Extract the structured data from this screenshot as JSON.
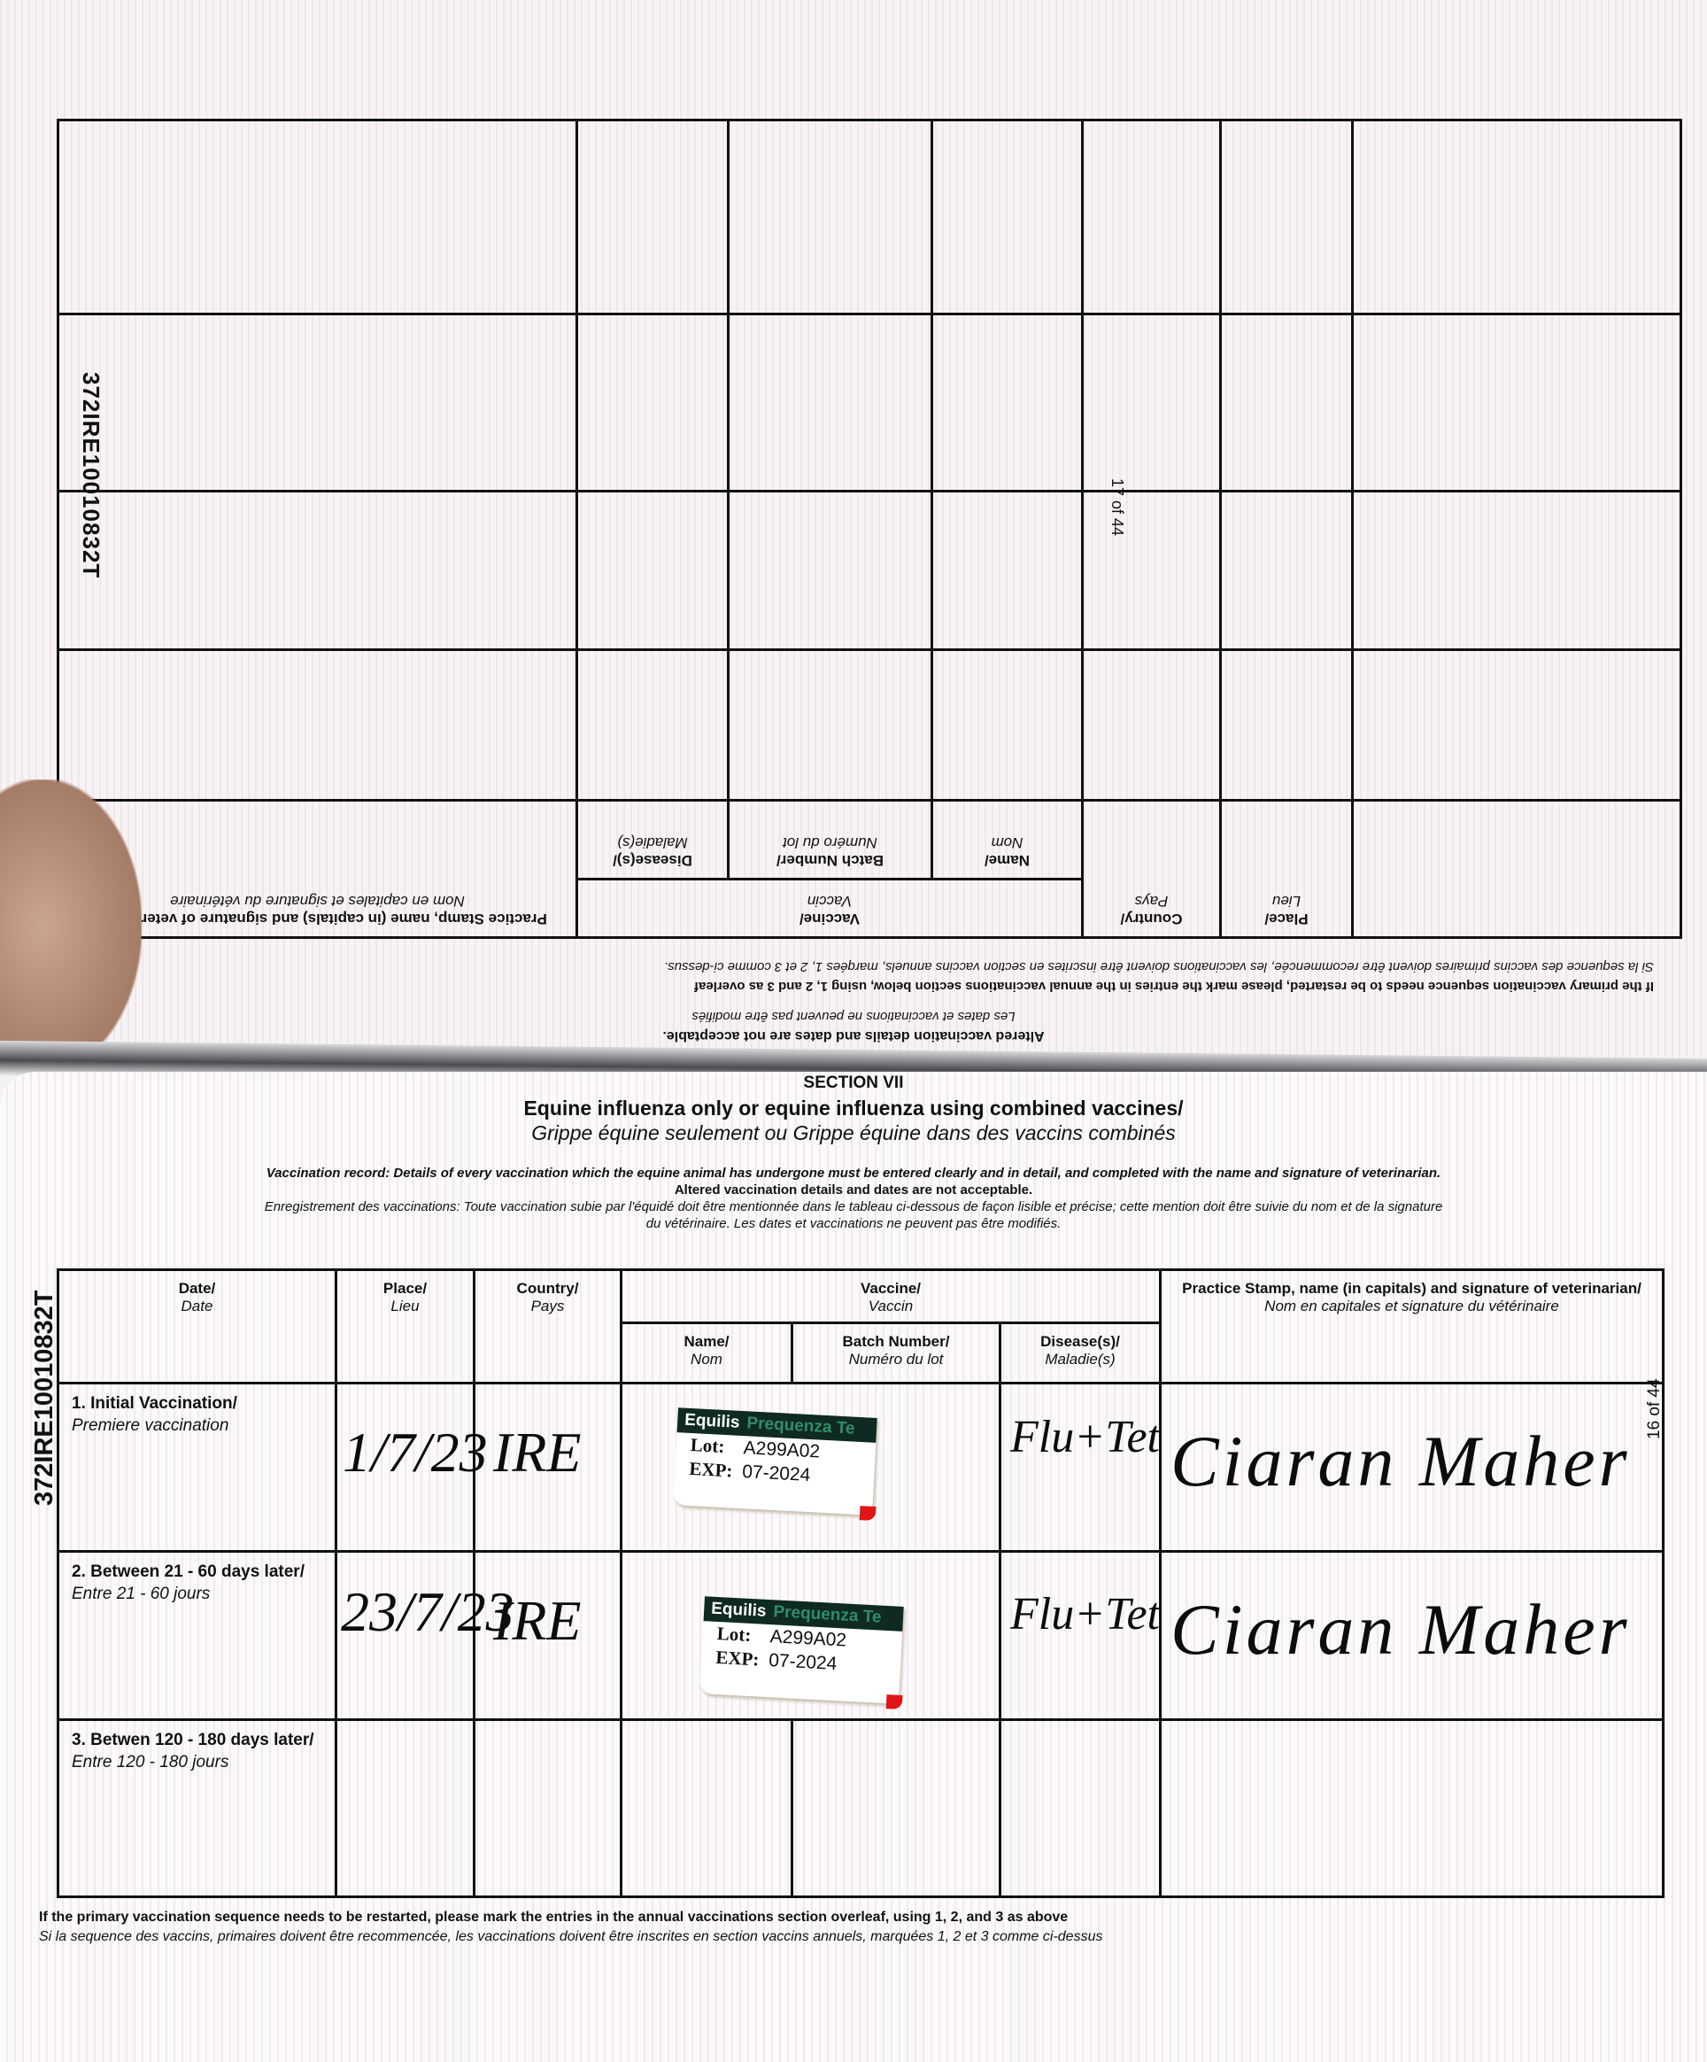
{
  "top_page": {
    "horse_id": "372IRE10010832T",
    "page_number": "17 of 44",
    "note_altered_en": "Altered vaccination details and dates are not acceptable.",
    "note_altered_fr": "Les dates et vaccinations ne peuvent pas être modifiés",
    "note_restart_en": "If the primary vaccination sequence needs to be restarted, please mark the entries in the annual vaccinations section below, using 1, 2 and 3 as overleaf",
    "note_restart_fr": "Si la sequence des vaccins primaires doivent être recommencée, les vaccinations doivent être inscrites en section vaccins annuels, marqées 1, 2 et 3 comme ci-dessus.",
    "headers": {
      "place_en": "Place/",
      "place_fr": "Lieu",
      "country_en": "Country/",
      "country_fr": "Pays",
      "vaccine_en": "Vaccine/",
      "vaccine_fr": "Vaccin",
      "name_en": "Name/",
      "name_fr": "Nom",
      "batch_en": "Batch Number/",
      "batch_fr": "Numéro du lot",
      "disease_en": "Disease(s)/",
      "disease_fr": "Maladie(s)",
      "stamp_en": "Practice Stamp, name (in capitals) and signature of veterinarian/",
      "stamp_fr": "Nom en capitales et signature du vétérinaire"
    }
  },
  "bottom_page": {
    "horse_id": "372IRE10010832T",
    "page_number": "16 of 44",
    "section": "SECTION VII",
    "title_en": "Equine influenza only or equine influenza using combined vaccines/",
    "title_fr": "Grippe équine seulement ou Grippe équine dans des vaccins combinés",
    "intro_en": "Vaccination record: Details of every vaccination which the equine animal has undergone must be entered clearly and in detail, and completed with the name and signature of veterinarian.",
    "intro_en_2": "Altered vaccination details and dates are not acceptable.",
    "intro_fr": "Enregistrement des vaccinations: Toute vaccination subie par l'équidé doit être mentionnée dans le tableau ci-dessous de façon lisible et précise; cette mention doit être suivie du nom et de la signature",
    "intro_fr_2": "du vétérinaire. Les dates et vaccinations ne peuvent pas être modifiés.",
    "headers": {
      "date_en": "Date/",
      "date_fr": "Date",
      "place_en": "Place/",
      "place_fr": "Lieu",
      "country_en": "Country/",
      "country_fr": "Pays",
      "vaccine_en": "Vaccine/",
      "vaccine_fr": "Vaccin",
      "name_en": "Name/",
      "name_fr": "Nom",
      "batch_en": "Batch Number/",
      "batch_fr": "Numéro du lot",
      "disease_en": "Disease(s)/",
      "disease_fr": "Maladie(s)",
      "stamp_en": "Practice Stamp, name (in capitals) and signature of veterinarian/",
      "stamp_fr": "Nom en capitales et signature du vétérinaire"
    },
    "rows": [
      {
        "label_en": "1. Initial Vaccination/",
        "label_fr": "Premiere vaccination",
        "date": "1/7/23",
        "country": "IRE",
        "vaccine_brand": "Equilis",
        "vaccine_product": "Prequenza Te",
        "lot_label": "Lot:",
        "lot": "A299A02",
        "exp_label": "EXP:",
        "exp": "07-2024",
        "disease": "Flu+Tet",
        "signature": "Ciaran Maher"
      },
      {
        "label_en": "2. Between 21 - 60 days later/",
        "label_fr": "Entre 21 - 60 jours",
        "date": "23/7/23",
        "country": "IRE",
        "vaccine_brand": "Equilis",
        "vaccine_product": "Prequenza Te",
        "lot_label": "Lot:",
        "lot": "A299A02",
        "exp_label": "EXP:",
        "exp": "07-2024",
        "disease": "Flu+Tet",
        "signature": "Ciaran Maher"
      },
      {
        "label_en": "3. Betwen 120 - 180 days later/",
        "label_fr": "Entre 120 - 180 jours"
      }
    ],
    "footnote_en": "If the primary vaccination sequence needs to be restarted, please mark the entries in the annual vaccinations section overleaf, using 1, 2, and 3 as above",
    "footnote_fr": "Si la sequence des vaccins, primaires doivent être recommencée, les vaccinations doivent être inscrites en section vaccins annuels, marquées 1, 2 et 3 comme ci-dessus"
  },
  "colors": {
    "sticker_band": "#0f2a22",
    "sticker_product": "#2f8d6a",
    "sticker_tip": "#e01515"
  }
}
